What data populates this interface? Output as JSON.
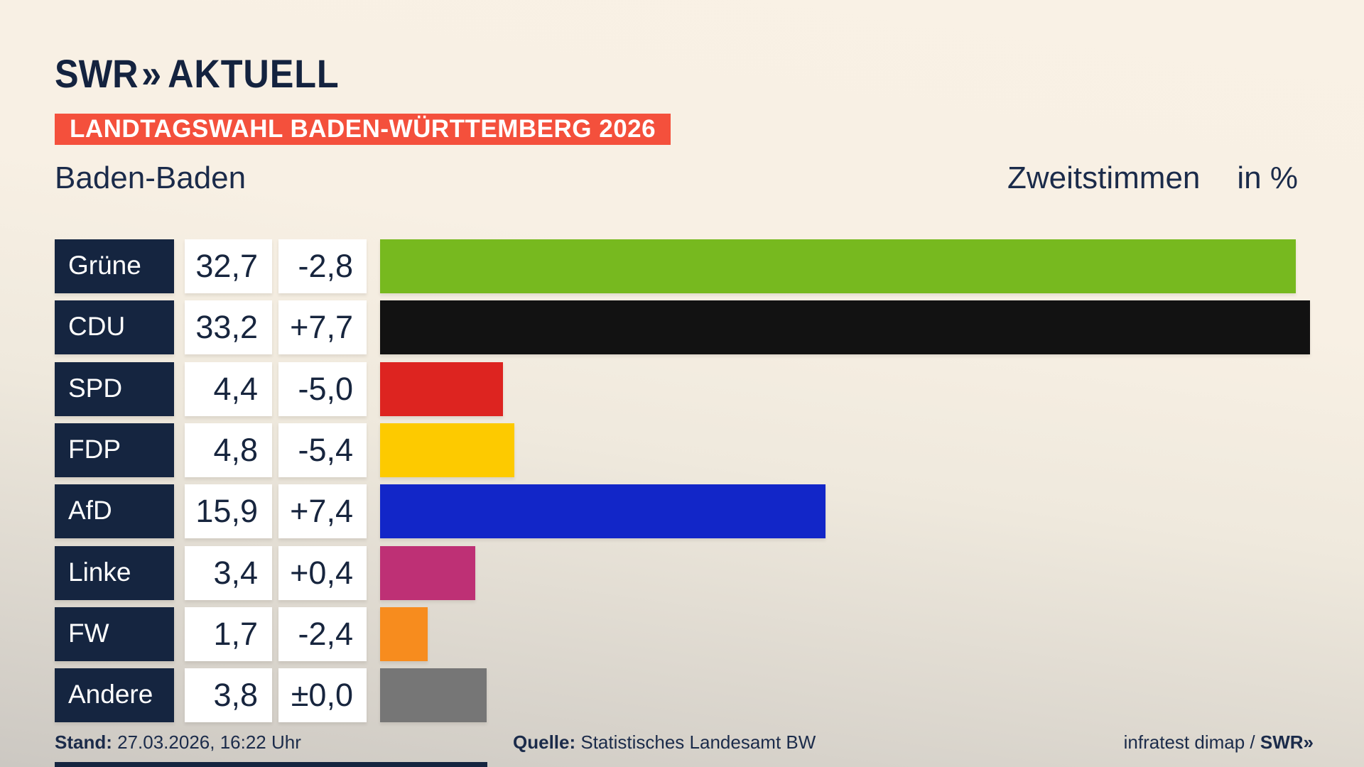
{
  "brand": {
    "name": "SWR",
    "chevrons": "»",
    "suffix": "AKTUELL"
  },
  "banner": {
    "text": "LANDTAGSWAHL BADEN-WÜRTTEMBERG 2026",
    "bg_color": "#f4503c",
    "text_color": "#ffffff"
  },
  "header": {
    "region": "Baden-Baden",
    "measure": "Zweitstimmen",
    "unit": "in %"
  },
  "chart_data": {
    "type": "bar",
    "orientation": "horizontal",
    "title": "Landtagswahl Baden-Württemberg 2026 — Baden-Baden — Zweitstimmen in %",
    "unit": "%",
    "categories": [
      "Grüne",
      "CDU",
      "SPD",
      "FDP",
      "AfD",
      "Linke",
      "FW",
      "Andere"
    ],
    "values": [
      32.7,
      33.2,
      4.4,
      4.8,
      15.9,
      3.4,
      1.7,
      3.8
    ],
    "value_labels": [
      "32,7",
      "33,2",
      "4,4",
      "4,8",
      "15,9",
      "3,4",
      "1,7",
      "3,8"
    ],
    "changes": [
      -2.8,
      7.7,
      -5.0,
      -5.4,
      7.4,
      0.4,
      -2.4,
      0.0
    ],
    "change_labels": [
      "-2,8",
      "+7,7",
      "-5,0",
      "-5,4",
      "+7,4",
      "+0,4",
      "-2,4",
      "±0,0"
    ],
    "bar_colors": [
      "#77b91f",
      "#121212",
      "#dd2420",
      "#fdca00",
      "#1226c8",
      "#be3075",
      "#f78c1e",
      "#767676"
    ],
    "xlim": [
      0,
      33.2
    ],
    "grid": false,
    "legend": false,
    "label_box_color": "#152540",
    "value_box_color": "#ffffff"
  },
  "footer": {
    "stand_label": "Stand:",
    "stand_value": " 27.03.2026, 16:22 Uhr",
    "quelle_label": "Quelle:",
    "quelle_value": " Statistisches Landesamt BW",
    "credit_text": "infratest dimap / ",
    "credit_brand": "SWR",
    "credit_chevrons": "»"
  },
  "colors": {
    "navy": "#152540",
    "text": "#1b2b4a",
    "background_top": "#f9f1e5",
    "background_bottom": "#ccc8c2"
  }
}
